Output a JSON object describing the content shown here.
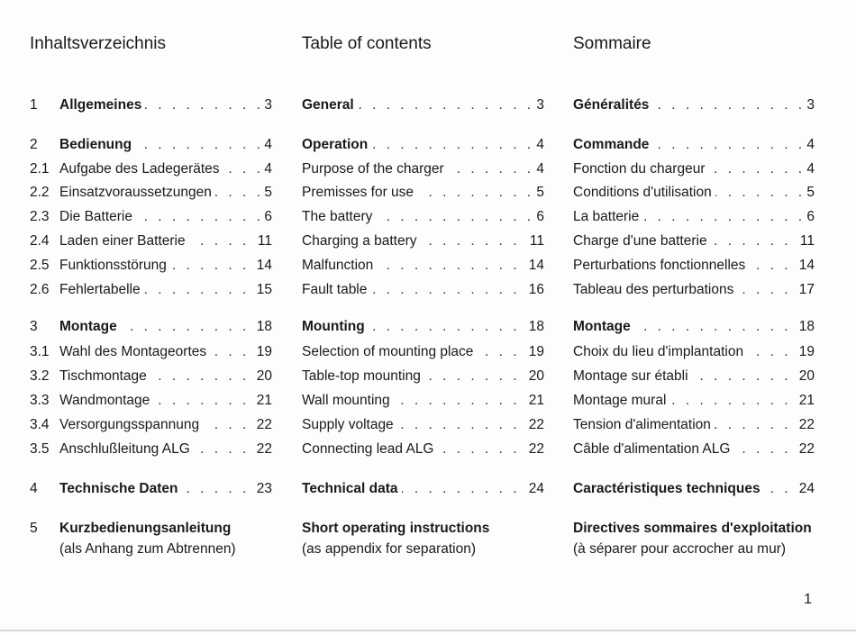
{
  "columns": [
    {
      "heading": "Inhaltsverzeichnis",
      "rows": [
        {
          "num": "1",
          "text": "Allgemeines",
          "page": "3",
          "bold": true
        },
        {
          "num": "2",
          "text": "Bedienung",
          "page": "4",
          "bold": true
        },
        {
          "num": "2.1",
          "text": "Aufgabe des Ladegerätes",
          "page": "4",
          "bold": false
        },
        {
          "num": "2.2",
          "text": "Einsatzvoraussetzungen",
          "page": "5",
          "bold": false
        },
        {
          "num": "2.3",
          "text": "Die Batterie",
          "page": "6",
          "bold": false
        },
        {
          "num": "2.4",
          "text": "Laden einer Batterie",
          "page": "11",
          "bold": false
        },
        {
          "num": "2.5",
          "text": "Funktionsstörung",
          "page": "14",
          "bold": false
        },
        {
          "num": "2.6",
          "text": "Fehlertabelle",
          "page": "15",
          "bold": false
        },
        {
          "num": "3",
          "text": "Montage",
          "page": "18",
          "bold": true
        },
        {
          "num": "3.1",
          "text": "Wahl des Montageortes",
          "page": "19",
          "bold": false
        },
        {
          "num": "3.2",
          "text": "Tischmontage",
          "page": "20",
          "bold": false
        },
        {
          "num": "3.3",
          "text": "Wandmontage",
          "page": "21",
          "bold": false
        },
        {
          "num": "3.4",
          "text": "Versorgungsspannung",
          "page": "22",
          "bold": false
        },
        {
          "num": "3.5",
          "text": "Anschlußleitung ALG",
          "page": "22",
          "bold": false
        },
        {
          "num": "4",
          "text": "Technische Daten",
          "page": "23",
          "bold": true
        }
      ],
      "final": {
        "num": "5",
        "title": "Kurzbedienungsanleitung",
        "subtitle": "(als Anhang zum Abtrennen)"
      }
    },
    {
      "heading": "Table of contents",
      "rows": [
        {
          "num": "",
          "text": "General",
          "page": "3",
          "bold": true
        },
        {
          "num": "",
          "text": "Operation",
          "page": "4",
          "bold": true
        },
        {
          "num": "",
          "text": "Purpose of the charger",
          "page": "4",
          "bold": false
        },
        {
          "num": "",
          "text": "Premisses for use",
          "page": "5",
          "bold": false
        },
        {
          "num": "",
          "text": "The battery",
          "page": "6",
          "bold": false
        },
        {
          "num": "",
          "text": "Charging a battery",
          "page": "11",
          "bold": false
        },
        {
          "num": "",
          "text": "Malfunction",
          "page": "14",
          "bold": false
        },
        {
          "num": "",
          "text": "Fault table",
          "page": "16",
          "bold": false
        },
        {
          "num": "",
          "text": "Mounting",
          "page": "18",
          "bold": true
        },
        {
          "num": "",
          "text": "Selection of mounting place",
          "page": "19",
          "bold": false
        },
        {
          "num": "",
          "text": "Table-top mounting",
          "page": "20",
          "bold": false
        },
        {
          "num": "",
          "text": "Wall mounting",
          "page": "21",
          "bold": false
        },
        {
          "num": "",
          "text": "Supply voltage",
          "page": "22",
          "bold": false
        },
        {
          "num": "",
          "text": "Connecting lead ALG",
          "page": "22",
          "bold": false
        },
        {
          "num": "",
          "text": "Technical data",
          "page": "24",
          "bold": true
        }
      ],
      "final": {
        "num": "",
        "title": "Short operating instructions",
        "subtitle": "(as appendix for separation)"
      }
    },
    {
      "heading": "Sommaire",
      "rows": [
        {
          "num": "",
          "text": "Généralités",
          "page": "3",
          "bold": true
        },
        {
          "num": "",
          "text": "Commande",
          "page": "4",
          "bold": true
        },
        {
          "num": "",
          "text": "Fonction du chargeur",
          "page": "4",
          "bold": false
        },
        {
          "num": "",
          "text": "Conditions d'utilisation",
          "page": "5",
          "bold": false
        },
        {
          "num": "",
          "text": "La batterie",
          "page": "6",
          "bold": false
        },
        {
          "num": "",
          "text": "Charge d'une batterie",
          "page": "11",
          "bold": false
        },
        {
          "num": "",
          "text": "Perturbations fonctionnelles",
          "page": "14",
          "bold": false
        },
        {
          "num": "",
          "text": "Tableau des perturbations",
          "page": "17",
          "bold": false
        },
        {
          "num": "",
          "text": "Montage",
          "page": "18",
          "bold": true
        },
        {
          "num": "",
          "text": "Choix du lieu d'implantation",
          "page": "19",
          "bold": false
        },
        {
          "num": "",
          "text": "Montage sur établi",
          "page": "20",
          "bold": false
        },
        {
          "num": "",
          "text": "Montage mural",
          "page": "21",
          "bold": false
        },
        {
          "num": "",
          "text": "Tension d'alimentation",
          "page": "22",
          "bold": false
        },
        {
          "num": "",
          "text": "Câble d'alimentation ALG",
          "page": "22",
          "bold": false
        },
        {
          "num": "",
          "text": "Caractéristiques techniques",
          "page": "24",
          "bold": true
        }
      ],
      "final": {
        "num": "",
        "title": "Directives sommaires d'exploitation",
        "subtitle": "(à séparer pour accrocher au mur)"
      }
    }
  ],
  "page_number": "1"
}
